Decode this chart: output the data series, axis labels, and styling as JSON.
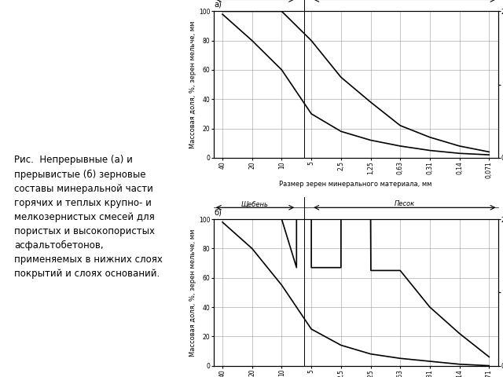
{
  "title_text": "Рис.  Непрерывные (а) и\nпрерывистые (б) зерновые\nсоставы минеральной части\nгорячих и теплых крупно- и\nмелкозернистых смесей для\nпористых и высокопористых\nасфальтобетонов,\nприменяемых в нижних слоях\nпокрытий и слоях оснований.",
  "xlabel": "Размер зерен минерального материала, мм",
  "ylabel": "Массовая доля, %, зерен мельче, мм",
  "sheben_label": "Щебень",
  "pesok_label": "Песок",
  "label_a": "а)",
  "label_b": "б)",
  "x_ticks_labels": [
    "40",
    "20",
    "10",
    "5",
    "2,5",
    "1,25",
    "0,63",
    "0,31",
    "0,14",
    "0,071"
  ],
  "x_ticks_values": [
    0,
    1,
    2,
    3,
    4,
    5,
    6,
    7,
    8,
    9
  ],
  "sheben_x_end": 2.5,
  "pesok_x_start": 3.0,
  "chart_a_curve1_x": [
    0,
    1,
    2,
    3,
    4,
    5,
    6,
    7,
    8,
    9
  ],
  "chart_a_curve1_y": [
    98,
    80,
    60,
    30,
    18,
    12,
    8,
    5,
    3,
    2
  ],
  "chart_a_curve2_x": [
    0,
    1,
    2,
    3,
    4,
    5,
    6,
    7,
    8,
    9
  ],
  "chart_a_curve2_y": [
    100,
    100,
    100,
    80,
    55,
    38,
    22,
    14,
    8,
    4
  ],
  "chart_b_curve1_x": [
    0,
    1,
    2,
    3,
    4,
    5,
    6,
    7,
    8,
    9
  ],
  "chart_b_curve1_y": [
    98,
    80,
    55,
    25,
    14,
    8,
    5,
    3,
    1,
    0
  ],
  "chart_b_curve2_x": [
    0,
    1,
    2,
    2.5,
    2.5,
    3.0,
    3.0,
    4.0,
    4.0,
    5.0,
    5.01,
    6,
    7,
    8,
    9
  ],
  "chart_b_curve2_y": [
    100,
    100,
    100,
    67,
    100,
    100,
    67,
    67,
    100,
    100,
    65,
    65,
    40,
    22,
    6
  ],
  "ylim_main": [
    0,
    100
  ],
  "background_color": "#ffffff",
  "curve_color": "#000000",
  "grid_color": "#999999",
  "label_fontsize": 6.0,
  "tick_fontsize": 5.5,
  "caption_fontsize": 8.5
}
